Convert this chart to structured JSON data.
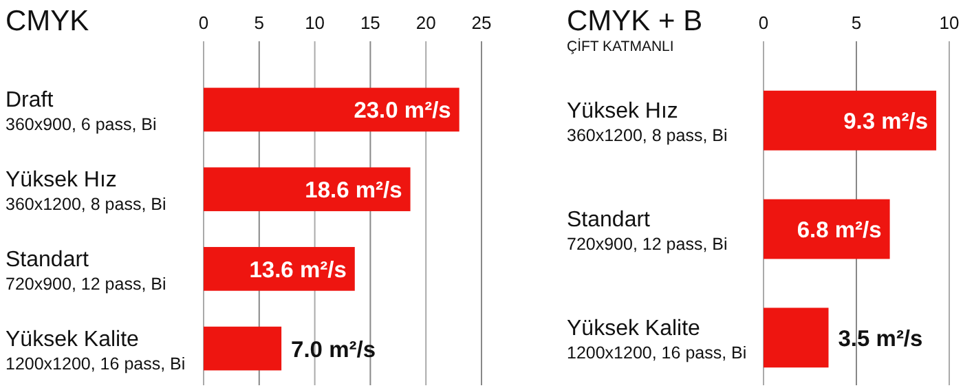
{
  "chart_data": [
    {
      "type": "bar",
      "orientation": "horizontal",
      "title": "CMYK",
      "categories": [
        "Draft\n360x900, 6 pass, Bi",
        "Yüksek Hız\n360x1200, 8 pass, Bi",
        "Standart\n720x900, 12 pass, Bi",
        "Yüksek Kalite\n1200x1200, 16 pass, Bi"
      ],
      "values": [
        23.0,
        18.6,
        13.6,
        7.0
      ],
      "color": "#ee1510",
      "value_labels": [
        "23.0 m²/s",
        "18.6 m²/s",
        "13.6 m²/s",
        "7.0 m²/s"
      ],
      "xlim": [
        0,
        25
      ],
      "xticks": [
        0,
        5,
        10,
        15,
        20,
        25
      ],
      "grid": "x"
    },
    {
      "type": "bar",
      "orientation": "horizontal",
      "title": "CMYK + B",
      "subtitle": "ÇİFT KATMANLI",
      "categories": [
        "Yüksek Hız\n360x1200, 8 pass, Bi",
        "Standart\n720x900, 12 pass, Bi",
        "Yüksek Kalite\n1200x1200, 16 pass, Bi"
      ],
      "values": [
        9.3,
        6.8,
        3.5
      ],
      "color": "#ee1510",
      "value_labels": [
        "9.3 m²/s",
        "6.8 m²/s",
        "3.5 m²/s"
      ],
      "xlim": [
        0,
        10
      ],
      "xticks": [
        0,
        5,
        10
      ],
      "grid": "x"
    }
  ]
}
